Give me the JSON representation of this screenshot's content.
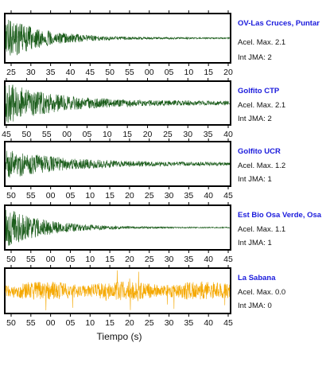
{
  "chart_data": [
    {
      "type": "line",
      "station": "OV-Las Cruces, Puntar",
      "accel_label": "Acel. Max. 2.1",
      "jma_label": "Int JMA: 2",
      "accel_max": 2.1,
      "jma": 2,
      "color": "#1a5c1a",
      "tick_labels": [
        "25",
        "30",
        "35",
        "40",
        "45",
        "50",
        "55",
        "00",
        "05",
        "10",
        "15",
        "20"
      ],
      "signal_profile": {
        "onset": 0.0,
        "peak_amp": 0.95,
        "decay": 6.0,
        "noise": 0.03
      }
    },
    {
      "type": "line",
      "station": "Golfito CTP",
      "accel_label": "Acel. Max. 2.1",
      "jma_label": "Int JMA: 2",
      "accel_max": 2.1,
      "jma": 2,
      "color": "#1a5c1a",
      "tick_labels": [
        "45",
        "50",
        "55",
        "00",
        "05",
        "10",
        "15",
        "20",
        "25",
        "30",
        "35",
        "40"
      ],
      "signal_profile": {
        "onset": 0.0,
        "peak_amp": 0.95,
        "decay": 4.5,
        "noise": 0.1
      }
    },
    {
      "type": "line",
      "station": "Golfito UCR",
      "accel_label": "Acel. Max. 1.2",
      "jma_label": "Int JMA: 1",
      "accel_max": 1.2,
      "jma": 1,
      "color": "#1a5c1a",
      "tick_labels": [
        "50",
        "55",
        "00",
        "05",
        "10",
        "15",
        "20",
        "25",
        "30",
        "35",
        "40",
        "45"
      ],
      "signal_profile": {
        "onset": 0.0,
        "peak_amp": 0.7,
        "decay": 4.0,
        "noise": 0.07
      }
    },
    {
      "type": "line",
      "station": "Est Bio Osa Verde, Osa",
      "accel_label": "Acel. Max. 1.1",
      "jma_label": "Int JMA: 1",
      "accel_max": 1.1,
      "jma": 1,
      "color": "#1a5c1a",
      "tick_labels": [
        "50",
        "55",
        "00",
        "05",
        "10",
        "15",
        "20",
        "25",
        "30",
        "35",
        "40",
        "45"
      ],
      "signal_profile": {
        "onset": 0.0,
        "peak_amp": 0.95,
        "decay": 5.5,
        "noise": 0.02
      }
    },
    {
      "type": "line",
      "station": "La Sabana",
      "accel_label": "Acel. Max. 0.0",
      "jma_label": "Int JMA: 0",
      "accel_max": 0.0,
      "jma": 0,
      "color": "#f5a800",
      "tick_labels": [
        "50",
        "55",
        "00",
        "05",
        "10",
        "15",
        "20",
        "25",
        "30",
        "35",
        "40",
        "45"
      ],
      "signal_profile": {
        "onset": 0.0,
        "peak_amp": 0.3,
        "decay": 0.0,
        "noise": 0.3
      }
    }
  ],
  "xlabel": "Tiempo (s)"
}
